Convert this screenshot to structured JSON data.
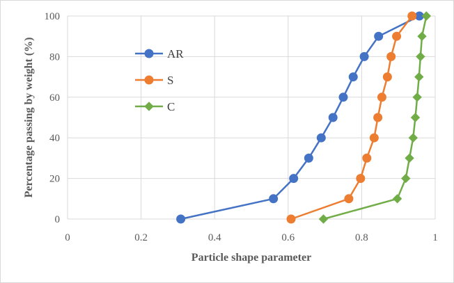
{
  "chart_data": {
    "type": "line",
    "title": "",
    "xlabel": "Particle shape parameter",
    "ylabel": "Percentage passing by weight (%)",
    "xlim": [
      0,
      1
    ],
    "ylim": [
      0,
      100
    ],
    "x_ticks": [
      "0",
      "0.2",
      "0.4",
      "0.6",
      "0.8",
      "1"
    ],
    "y_ticks": [
      "0",
      "20",
      "40",
      "60",
      "80",
      "100"
    ],
    "grid": "vertical and horizontal major gridlines",
    "legend_position": "left-center, inside plot",
    "series": [
      {
        "name": "AR",
        "color": "#4472C4",
        "marker": "circle",
        "points": [
          [
            0.308,
            0
          ],
          [
            0.56,
            10
          ],
          [
            0.615,
            20
          ],
          [
            0.656,
            30
          ],
          [
            0.69,
            40
          ],
          [
            0.722,
            50
          ],
          [
            0.75,
            60
          ],
          [
            0.777,
            70
          ],
          [
            0.807,
            80
          ],
          [
            0.846,
            90
          ],
          [
            0.957,
            100
          ]
        ]
      },
      {
        "name": "S",
        "color": "#ED7D31",
        "marker": "circle",
        "points": [
          [
            0.608,
            0
          ],
          [
            0.765,
            10
          ],
          [
            0.797,
            20
          ],
          [
            0.814,
            30
          ],
          [
            0.834,
            40
          ],
          [
            0.844,
            50
          ],
          [
            0.855,
            60
          ],
          [
            0.87,
            70
          ],
          [
            0.88,
            80
          ],
          [
            0.895,
            90
          ],
          [
            0.937,
            100
          ]
        ]
      },
      {
        "name": "C",
        "color": "#70AD47",
        "marker": "diamond",
        "points": [
          [
            0.696,
            0
          ],
          [
            0.897,
            10
          ],
          [
            0.92,
            20
          ],
          [
            0.93,
            30
          ],
          [
            0.94,
            40
          ],
          [
            0.946,
            50
          ],
          [
            0.951,
            60
          ],
          [
            0.956,
            70
          ],
          [
            0.96,
            80
          ],
          [
            0.964,
            90
          ],
          [
            0.976,
            100
          ]
        ]
      }
    ]
  }
}
